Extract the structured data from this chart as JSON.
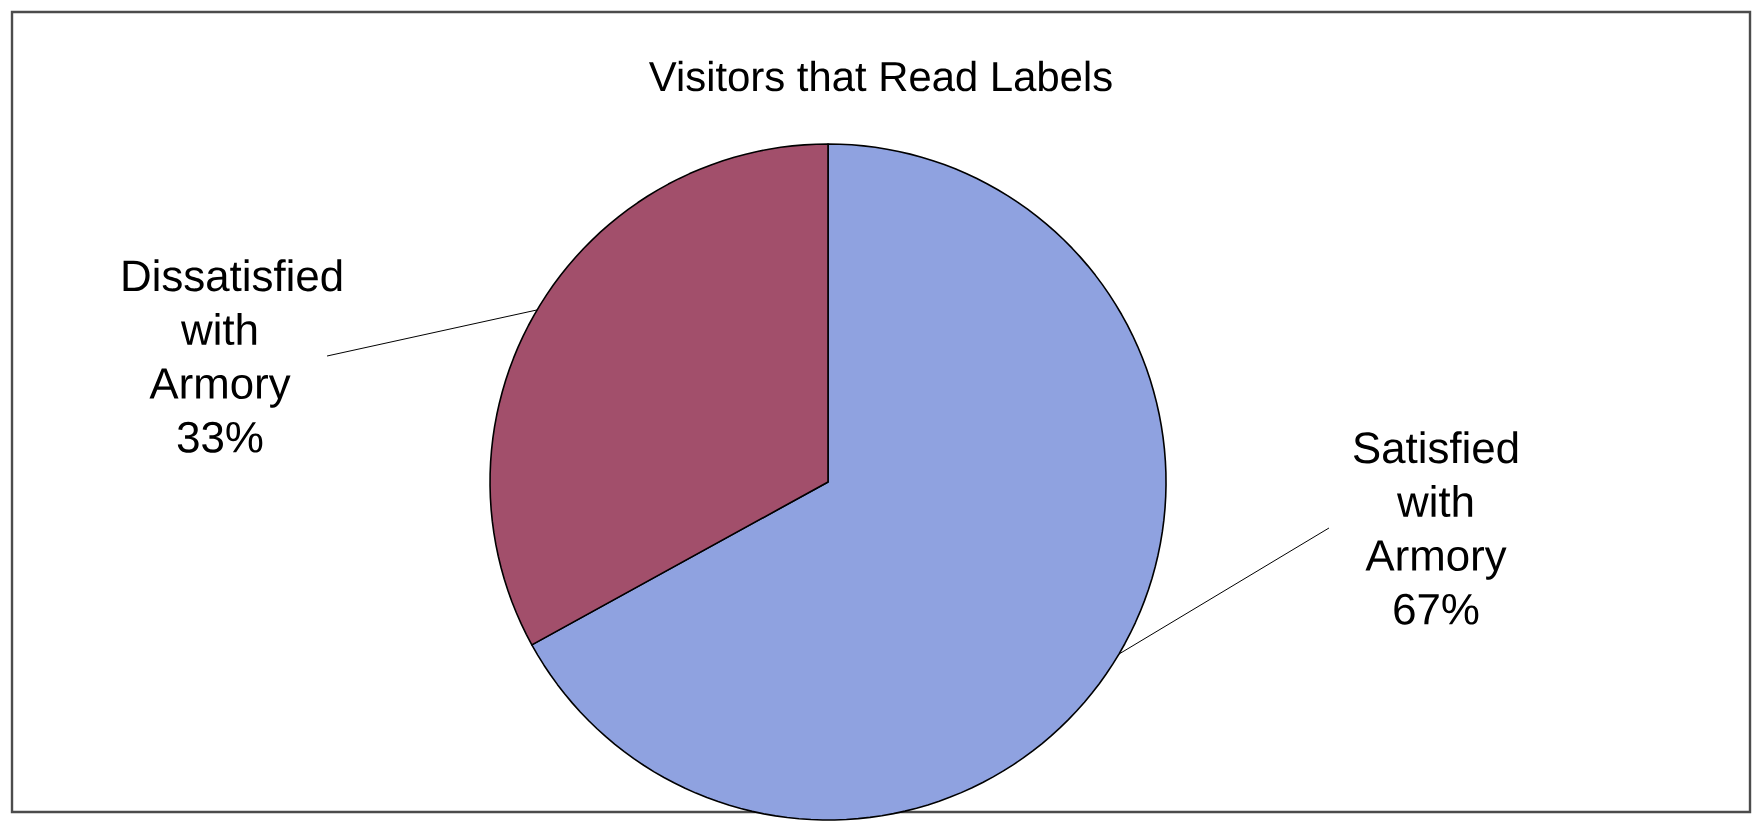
{
  "chart_data": {
    "type": "pie",
    "title": "Visitors that Read Labels",
    "categories": [
      "Satisfied with Armory",
      "Dissatisfied with Armory"
    ],
    "values": [
      67,
      33
    ],
    "value_labels": [
      "67%",
      "33%"
    ],
    "colors": [
      "#8fa2e0",
      "#a24f6b"
    ]
  }
}
